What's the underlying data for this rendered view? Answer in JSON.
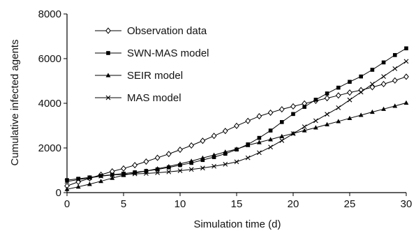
{
  "chart_data": {
    "type": "line",
    "xlabel": "Simulation time (d)",
    "ylabel": "Cumulative infected agents",
    "xlim": [
      0,
      30
    ],
    "ylim": [
      0,
      8000
    ],
    "xticks": [
      0,
      5,
      10,
      15,
      20,
      25,
      30
    ],
    "yticks": [
      0,
      2000,
      4000,
      6000,
      8000
    ],
    "grid": false,
    "legend_position": "top-left",
    "x": [
      0,
      1,
      2,
      3,
      4,
      5,
      6,
      7,
      8,
      9,
      10,
      11,
      12,
      13,
      14,
      15,
      16,
      17,
      18,
      19,
      20,
      21,
      22,
      23,
      24,
      25,
      26,
      27,
      28,
      29,
      30
    ],
    "series": [
      {
        "name": "Observation data",
        "marker": "open-diamond",
        "values": [
          300,
          480,
          640,
          800,
          950,
          1080,
          1230,
          1390,
          1560,
          1730,
          1920,
          2110,
          2320,
          2540,
          2760,
          2990,
          3210,
          3420,
          3580,
          3730,
          3860,
          3990,
          4110,
          4230,
          4350,
          4480,
          4590,
          4720,
          4860,
          5020,
          5190
        ]
      },
      {
        "name": "SWN-MAS model",
        "marker": "filled-square",
        "values": [
          560,
          620,
          680,
          750,
          800,
          850,
          910,
          970,
          1040,
          1130,
          1230,
          1330,
          1460,
          1590,
          1740,
          1930,
          2160,
          2450,
          2780,
          3160,
          3520,
          3840,
          4160,
          4440,
          4700,
          4960,
          5200,
          5500,
          5830,
          6160,
          6460
        ]
      },
      {
        "name": "SEIR model",
        "marker": "filled-triangle",
        "values": [
          150,
          260,
          380,
          510,
          650,
          780,
          880,
          970,
          1070,
          1170,
          1290,
          1410,
          1550,
          1680,
          1820,
          1950,
          2120,
          2250,
          2380,
          2520,
          2650,
          2780,
          2910,
          3050,
          3190,
          3330,
          3470,
          3610,
          3740,
          3880,
          4020
        ]
      },
      {
        "name": "MAS model",
        "marker": "x",
        "values": [
          500,
          580,
          660,
          740,
          790,
          820,
          840,
          860,
          890,
          930,
          980,
          1040,
          1100,
          1180,
          1270,
          1380,
          1560,
          1790,
          2040,
          2330,
          2640,
          2950,
          3220,
          3510,
          3800,
          4150,
          4500,
          4860,
          5200,
          5550,
          5880
        ]
      }
    ]
  }
}
